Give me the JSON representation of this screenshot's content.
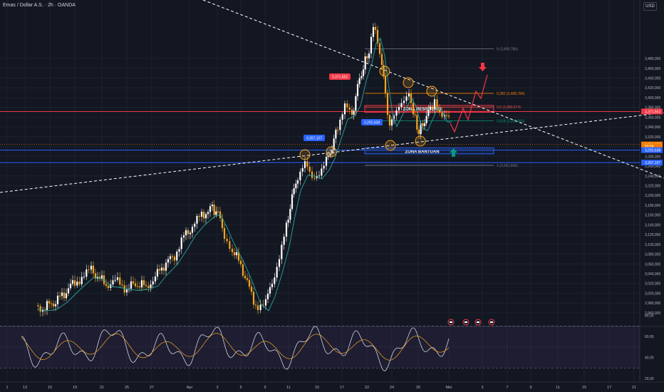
{
  "header": {
    "symbol_title": "Emas / Dollar A.S. · 2h · OANDA",
    "currency": "USD"
  },
  "chart_data": {
    "type": "candlestick",
    "price_axis": {
      "ticks": [
        2960,
        2980,
        3000,
        3020,
        3040,
        3060,
        3080,
        3100,
        3120,
        3140,
        3160,
        3180,
        3200,
        3220,
        3240,
        3260,
        3280,
        3300,
        3320,
        3340,
        3360,
        3380,
        3400,
        3420,
        3440,
        3460,
        3480
      ],
      "tick_labels": [
        "2,960,000",
        "2,980,000",
        "3,000,000",
        "3,020,000",
        "3,040,000",
        "3,060,000",
        "3,080,000",
        "3,100,000",
        "3,120,000",
        "3,140,000",
        "3,160,000",
        "3,180,000",
        "3,200,000",
        "3,220,000",
        "3,240,000",
        "3,260,000",
        "3,280,000",
        "3,300,000",
        "3,320,000",
        "3,340,000",
        "3,360,000",
        "3,380,000",
        "3,400,000",
        "3,420,000",
        "3,440,000",
        "3,460,000",
        "3,480,000"
      ]
    },
    "time_axis": {
      "labels": [
        "1",
        "13",
        "15",
        "19",
        "21",
        "25",
        "27",
        "Apr",
        "3",
        "5",
        "9",
        "11",
        "15",
        "17",
        "22",
        "24",
        "26",
        "Mei",
        "3",
        "7",
        "9",
        "11",
        "15",
        "17",
        "21"
      ]
    },
    "price_labels": [
      {
        "text": "3,371,552",
        "price": 3371.55,
        "color": "#f23645"
      },
      {
        "text": "3,304,165",
        "price": 3304.17,
        "color": "#f57c00"
      },
      {
        "text": "50:54",
        "price": 3300.5,
        "color": "#f57c00"
      },
      {
        "text": "3,292,638",
        "price": 3292.64,
        "color": "#2962ff"
      },
      {
        "text": "3,267,107",
        "price": 3267.11,
        "color": "#2962ff"
      }
    ],
    "fib_levels": [
      {
        "label": "0 (3,499,786)",
        "price": 3499.79,
        "color": "#787b86"
      },
      {
        "label": "0,382 (3,408,784)",
        "price": 3408.78,
        "color": "#f57c00"
      },
      {
        "label": "0,5 (3,380,674)",
        "price": 3380.67,
        "color": "#ef5350"
      },
      {
        "label": "0,618 (3,352,563)",
        "price": 3352.56,
        "color": "#089981"
      },
      {
        "label": "1 (3,261,565)",
        "price": 3261.57,
        "color": "#787b86"
      }
    ],
    "zones": [
      {
        "label": "ZONA RESISTENSI",
        "top": 3384,
        "bottom": 3370
      },
      {
        "label": "ZONA BANTUAN",
        "top": 3297,
        "bottom": 3285
      }
    ],
    "level_tags": [
      {
        "text": "3,371,552",
        "price": 3371.55
      },
      {
        "text": "3,292,638",
        "price": 3292.64
      },
      {
        "text": "3,267,107",
        "price": 3267.11
      }
    ],
    "candles": [],
    "rsi": {
      "ticks": [
        20,
        40,
        60,
        80
      ],
      "tick_labels": [
        "20,00",
        "40,00",
        "60,00",
        "80,00"
      ],
      "overbought": 70,
      "oversold": 30
    }
  }
}
